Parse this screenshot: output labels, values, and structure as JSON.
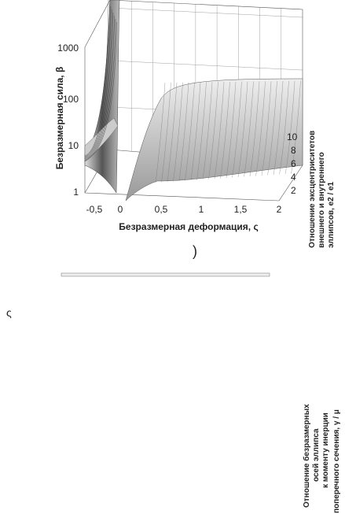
{
  "figure": {
    "y_label": "Безразмерная сила, β",
    "y_ticks": [
      "1",
      "10",
      "100",
      "1000"
    ],
    "x_label": "Безразмерная деформация, ς",
    "x_ticks": [
      "-0,5",
      "0",
      "0,5",
      "1",
      "1,5",
      "2"
    ],
    "z_label": [
      "Отношение эксцентриситетов",
      "внешнего и внутреннего",
      "эллипсов, e2 / e1"
    ],
    "z_ticks": [
      "2",
      "4",
      "6",
      "8",
      "10"
    ]
  },
  "caption": ")",
  "stray_symbol": "ς",
  "lower_figure": {
    "z_label": [
      "Отношение безразмерных",
      "осей эллипса",
      "к моменту инерции",
      "поперечного сечения, γ / μ"
    ]
  }
}
